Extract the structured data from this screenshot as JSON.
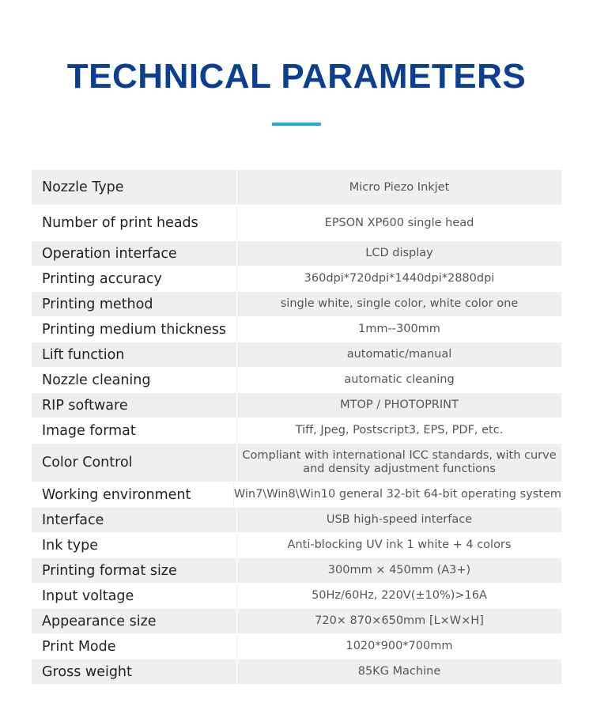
{
  "header": {
    "title": "TECHNICAL PARAMETERS",
    "accent_color": "#1aaee6",
    "title_color": "#0b3f91"
  },
  "params": [
    {
      "label": "Nozzle Type",
      "value": "Micro Piezo Inkjet"
    },
    {
      "label": "Number of print heads",
      "value": "EPSON XP600 single head"
    },
    {
      "label": "Operation interface",
      "value": "LCD display"
    },
    {
      "label": "Printing accuracy",
      "value": "360dpi*720dpi*1440dpi*2880dpi"
    },
    {
      "label": "Printing method",
      "value": "single white, single color, white color one"
    },
    {
      "label": "Printing medium thickness",
      "value": "1mm--300mm"
    },
    {
      "label": "Lift function",
      "value": "automatic/manual"
    },
    {
      "label": "Nozzle cleaning",
      "value": "automatic cleaning"
    },
    {
      "label": "RIP software",
      "value": "MTOP / PHOTOPRINT"
    },
    {
      "label": "Image format",
      "value": "Tiff, Jpeg, Postscript3, EPS, PDF, etc."
    },
    {
      "label": "Color Control",
      "value": "Compliant with international ICC standards, with curve and density adjustment functions"
    },
    {
      "label": "Working environment",
      "value": "Win7\\Win8\\Win10 general 32-bit 64-bit operating system"
    },
    {
      "label": "Interface",
      "value": "USB high-speed interface"
    },
    {
      "label": "Ink type",
      "value": "Anti-blocking UV ink 1 white + 4 colors"
    },
    {
      "label": "Printing format size",
      "value": "300mm × 450mm (A3+)"
    },
    {
      "label": "Input voltage",
      "value": "50Hz/60Hz, 220V(±10%)>16A"
    },
    {
      "label": "Appearance size",
      "value": "720× 870×650mm [L×W×H]"
    },
    {
      "label": "Print Mode",
      "value": "1020*900*700mm"
    },
    {
      "label": "Gross weight",
      "value": "85KG Machine"
    }
  ]
}
